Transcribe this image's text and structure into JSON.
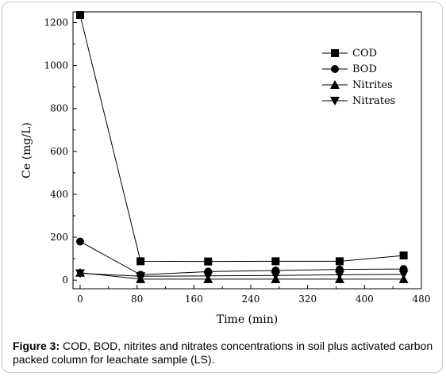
{
  "chart_data": {
    "type": "line",
    "title": "",
    "xlabel": "Time (min)",
    "ylabel": "Ce (mg/L)",
    "xlim": [
      -10,
      480
    ],
    "ylim": [
      -40,
      1250
    ],
    "xticks": [
      0,
      80,
      160,
      240,
      320,
      400,
      480
    ],
    "yticks": [
      0,
      200,
      400,
      600,
      800,
      1000,
      1200
    ],
    "legend_position": "top-right",
    "grid": false,
    "series": [
      {
        "name": "COD",
        "marker": "square",
        "x": [
          0,
          85,
          180,
          275,
          365,
          455
        ],
        "values": [
          1235,
          88,
          87,
          88,
          88,
          115
        ]
      },
      {
        "name": "BOD",
        "marker": "circle",
        "x": [
          0,
          85,
          180,
          275,
          365,
          455
        ],
        "values": [
          180,
          25,
          40,
          45,
          50,
          52
        ]
      },
      {
        "name": "Nitrites",
        "marker": "triangle-up",
        "x": [
          0,
          85,
          180,
          275,
          365,
          455
        ],
        "values": [
          35,
          5,
          5,
          5,
          5,
          5
        ]
      },
      {
        "name": "Nitrates",
        "marker": "triangle-down",
        "x": [
          0,
          85,
          180,
          275,
          365,
          455
        ],
        "values": [
          32,
          18,
          20,
          22,
          25,
          27
        ]
      }
    ]
  },
  "caption": {
    "label": "Figure 3:",
    "text": " COD, BOD, nitrites and nitrates concentrations in soil plus activated carbon packed column for leachate sample (LS)."
  }
}
